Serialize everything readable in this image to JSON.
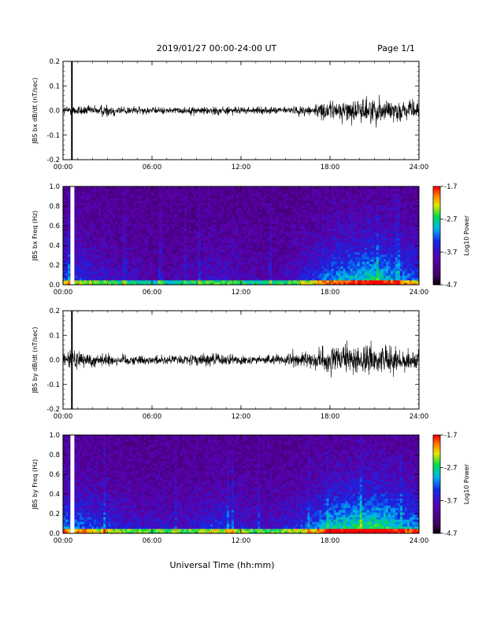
{
  "header": {
    "title": "2019/01/27  00:00-24:00 UT",
    "page": "Page 1/1"
  },
  "footer": {
    "xlabel": "Universal Time (hh:mm)"
  },
  "time_ticks": [
    "00:00",
    "06:00",
    "12:00",
    "18:00",
    "24:00"
  ],
  "chart_data": [
    {
      "type": "line",
      "ylabel": "JBS bx dB/dt (nT/sec)",
      "xlim": [
        0,
        24
      ],
      "ylim": [
        -0.2,
        0.2
      ],
      "yticks": [
        "0.2",
        "0.1",
        "0.0",
        "-0.1",
        "-0.2"
      ],
      "series": [
        {
          "x": [
            0,
            1,
            2,
            3,
            4,
            5,
            6,
            7,
            8,
            9,
            10,
            11,
            12,
            13,
            14,
            15,
            16,
            17,
            18,
            19,
            20,
            21,
            22,
            23,
            24
          ],
          "amplitude": [
            0.02,
            0.025,
            0.02,
            0.03,
            0.02,
            0.018,
            0.015,
            0.015,
            0.015,
            0.017,
            0.02,
            0.018,
            0.015,
            0.015,
            0.015,
            0.017,
            0.02,
            0.03,
            0.04,
            0.045,
            0.05,
            0.06,
            0.05,
            0.04,
            0.035
          ]
        }
      ],
      "annotations": [
        "data gap / spike near 00:30"
      ]
    },
    {
      "type": "heatmap",
      "ylabel": "JBS bx Freq (Hz)",
      "xlim": [
        0,
        24
      ],
      "ylim": [
        0.0,
        1.0
      ],
      "yticks": [
        "1.0",
        "0.8",
        "0.6",
        "0.4",
        "0.2",
        "0.0"
      ],
      "colorbar": {
        "label": "Log10 Power",
        "range": [
          -4.7,
          -1.7
        ],
        "ticks": [
          "-1.7",
          "-2.7",
          "-3.7",
          "-4.7"
        ]
      },
      "intensity_profile": [
        0.35,
        0.3,
        0.25,
        0.2,
        0.15,
        0.15,
        0.1,
        0.1,
        0.12,
        0.15,
        0.2,
        0.2,
        0.15,
        0.12,
        0.12,
        0.15,
        0.25,
        0.3,
        0.45,
        0.5,
        0.55,
        0.6,
        0.5,
        0.4,
        0.35
      ]
    },
    {
      "type": "line",
      "ylabel": "JBS by dB/dt (nT/sec)",
      "xlim": [
        0,
        24
      ],
      "ylim": [
        -0.2,
        0.2
      ],
      "yticks": [
        "0.2",
        "0.1",
        "0.0",
        "-0.1",
        "-0.2"
      ],
      "series": [
        {
          "x": [
            0,
            1,
            2,
            3,
            4,
            5,
            6,
            7,
            8,
            9,
            10,
            11,
            12,
            13,
            14,
            15,
            16,
            17,
            18,
            19,
            20,
            21,
            22,
            23,
            24
          ],
          "amplitude": [
            0.04,
            0.04,
            0.03,
            0.03,
            0.025,
            0.02,
            0.02,
            0.02,
            0.02,
            0.025,
            0.03,
            0.025,
            0.02,
            0.02,
            0.02,
            0.025,
            0.03,
            0.04,
            0.06,
            0.06,
            0.07,
            0.065,
            0.06,
            0.05,
            0.045
          ]
        }
      ],
      "annotations": [
        "data gap / spike near 00:30"
      ]
    },
    {
      "type": "heatmap",
      "ylabel": "JBS by Freq (Hz)",
      "xlim": [
        0,
        24
      ],
      "ylim": [
        0.0,
        1.0
      ],
      "yticks": [
        "1.0",
        "0.8",
        "0.6",
        "0.4",
        "0.2",
        "0.0"
      ],
      "colorbar": {
        "label": "Log10 Power",
        "range": [
          -4.7,
          -1.7
        ],
        "ticks": [
          "-1.7",
          "-2.7",
          "-3.7",
          "-4.7"
        ]
      },
      "intensity_profile": [
        0.45,
        0.4,
        0.35,
        0.3,
        0.25,
        0.2,
        0.2,
        0.2,
        0.2,
        0.25,
        0.3,
        0.3,
        0.25,
        0.2,
        0.2,
        0.25,
        0.3,
        0.4,
        0.55,
        0.6,
        0.65,
        0.65,
        0.6,
        0.5,
        0.45
      ]
    }
  ]
}
